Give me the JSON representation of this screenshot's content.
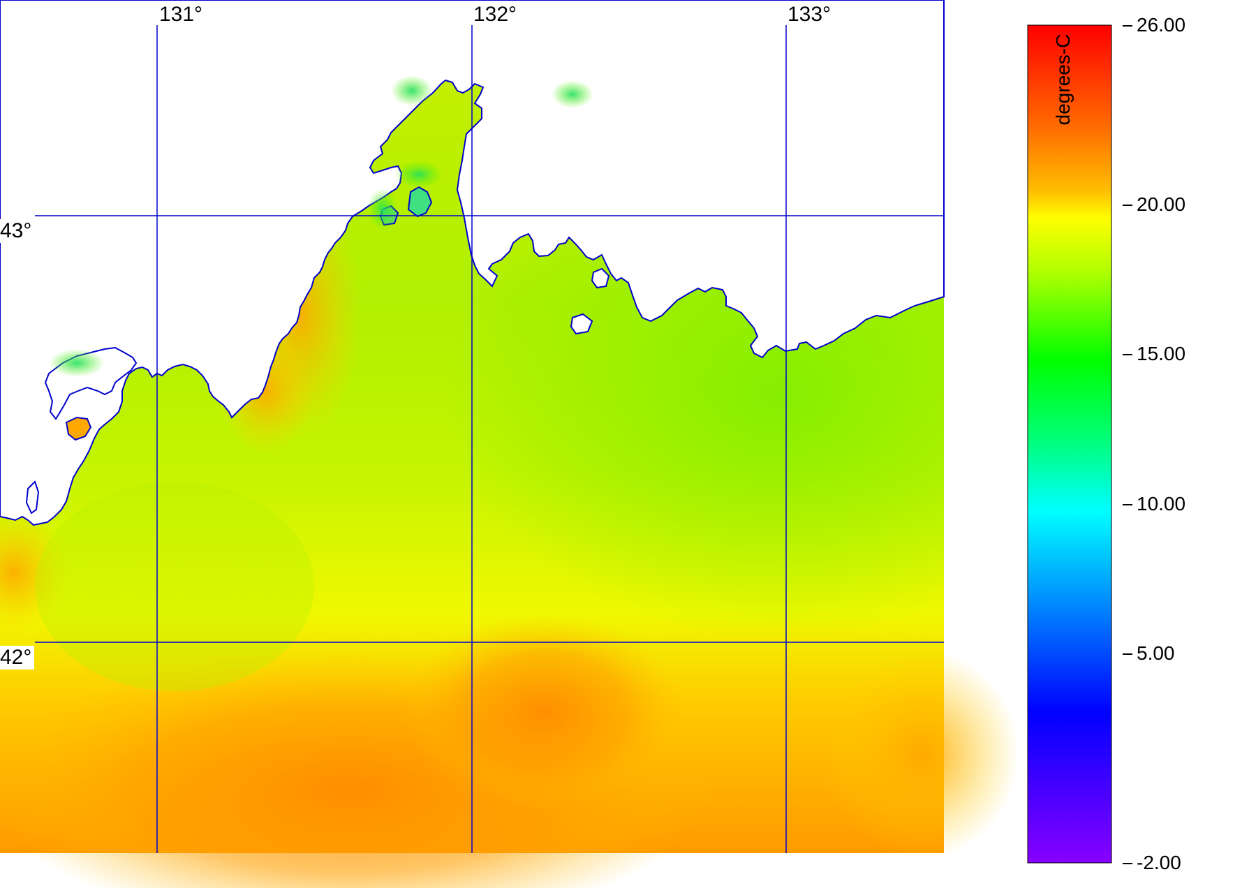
{
  "map": {
    "longitude_labels": [
      "131°",
      "132°",
      "133°"
    ],
    "latitude_labels": [
      "43°",
      "42°"
    ],
    "land_color": "#ffffff",
    "coastline_color": "#0000cc",
    "gridline_color": "#0000cc"
  },
  "colorbar": {
    "units": "degrees-C",
    "ticks": [
      "26.00",
      "20.00",
      "15.00",
      "10.00",
      "5.00",
      "-2.00"
    ],
    "min": -2.0,
    "max": 26.0,
    "colors": [
      "#ff0000",
      "#ff8c00",
      "#ffff00",
      "#00ff00",
      "#00ffff",
      "#0000ff",
      "#8800ff"
    ]
  }
}
